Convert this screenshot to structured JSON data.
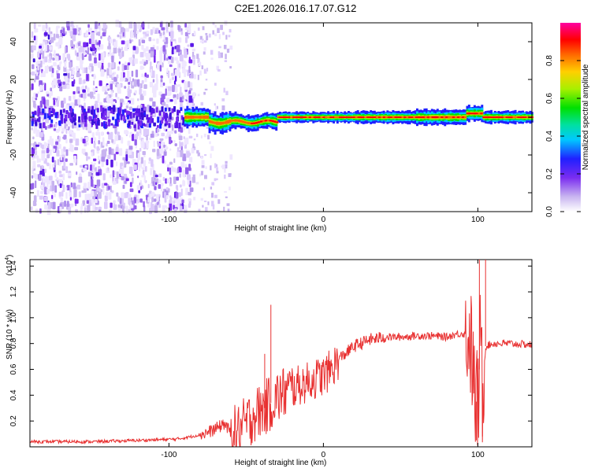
{
  "title": "C2E1.2026.016.17.07.G12",
  "chart_data": [
    {
      "type": "heatmap",
      "xlabel": "Height of straight line (km)",
      "ylabel": "Frequency (Hz)",
      "xlim": [
        -190,
        135
      ],
      "ylim": [
        -50,
        50
      ],
      "xticks": [
        -100,
        0,
        100
      ],
      "xtick_labels": [
        "-100",
        "0",
        "100"
      ],
      "yticks": [
        -40,
        -20,
        0,
        20,
        40
      ],
      "ytick_labels": [
        "-40",
        "-20",
        "0",
        "20",
        "40"
      ],
      "description_values": {
        "noise_region_km": [
          -190,
          -85
        ],
        "sparse_region_km": [
          -85,
          -60
        ],
        "ridge_start_km": -90,
        "ridge_freq_hz": 0,
        "ridge_end_km": 135
      },
      "colorbar": {
        "label": "Normalized spectral amplitude",
        "range": [
          0,
          1
        ],
        "ticks": [
          0,
          0.2,
          0.4,
          0.6,
          0.8
        ],
        "tick_labels": [
          "0.0",
          "0.2",
          "0.4",
          "0.6",
          "0.8"
        ],
        "colors": [
          "#ffffff",
          "#c8b4f0",
          "#7a2cf0",
          "#2020ff",
          "#00c8ff",
          "#00e0a0",
          "#00e000",
          "#a8f000",
          "#ffd000",
          "#ff6a00",
          "#ff0000",
          "#ff00a0"
        ]
      }
    },
    {
      "type": "line",
      "xlabel": "Height of straight line (km)",
      "ylabel": "SNR (10 * v/v)",
      "multiplier_label": "(x10",
      "multiplier_exp": "4",
      "multiplier_close": ")",
      "xlim": [
        -190,
        135
      ],
      "ylim": [
        0,
        1.45
      ],
      "xticks": [
        -100,
        0,
        100
      ],
      "xtick_labels": [
        "-100",
        "0",
        "100"
      ],
      "yticks": [
        0.2,
        0.4,
        0.6,
        0.8,
        1.0,
        1.2,
        1.4
      ],
      "ytick_labels": [
        "0.2",
        "0.4",
        "0.6",
        "0.8",
        "1.0",
        "1.2",
        "1.4"
      ],
      "line_color": "#e83030",
      "series": [
        {
          "name": "SNR",
          "x": [
            -190,
            -150,
            -120,
            -95,
            -85,
            -75,
            -68,
            -64,
            -60,
            -55,
            -50,
            -45,
            -40,
            -35,
            -30,
            -25,
            -20,
            -15,
            -10,
            -5,
            0,
            5,
            10,
            20,
            30,
            40,
            50,
            60,
            70,
            80,
            85,
            90,
            95,
            98,
            100,
            102,
            103,
            105,
            110,
            120,
            135
          ],
          "y": [
            0.04,
            0.04,
            0.05,
            0.06,
            0.08,
            0.11,
            0.15,
            0.18,
            0.1,
            0.12,
            0.18,
            0.25,
            0.28,
            0.33,
            0.38,
            0.42,
            0.45,
            0.48,
            0.5,
            0.53,
            0.55,
            0.6,
            0.68,
            0.78,
            0.83,
            0.85,
            0.85,
            0.86,
            0.86,
            0.85,
            0.87,
            0.88,
            0.85,
            0.4,
            0.3,
            0.9,
            0.4,
            0.78,
            0.8,
            0.8,
            0.79
          ]
        }
      ],
      "spikes": [
        {
          "x": -34,
          "y": 1.1
        },
        {
          "x": -38,
          "y": 0.72
        },
        {
          "x": -65,
          "y": 0.21
        },
        {
          "x": 101,
          "y": 1.5
        },
        {
          "x": 105,
          "y": 1.5
        },
        {
          "x": 103,
          "y": 0.08
        },
        {
          "x": 99,
          "y": 0.05
        }
      ]
    }
  ]
}
